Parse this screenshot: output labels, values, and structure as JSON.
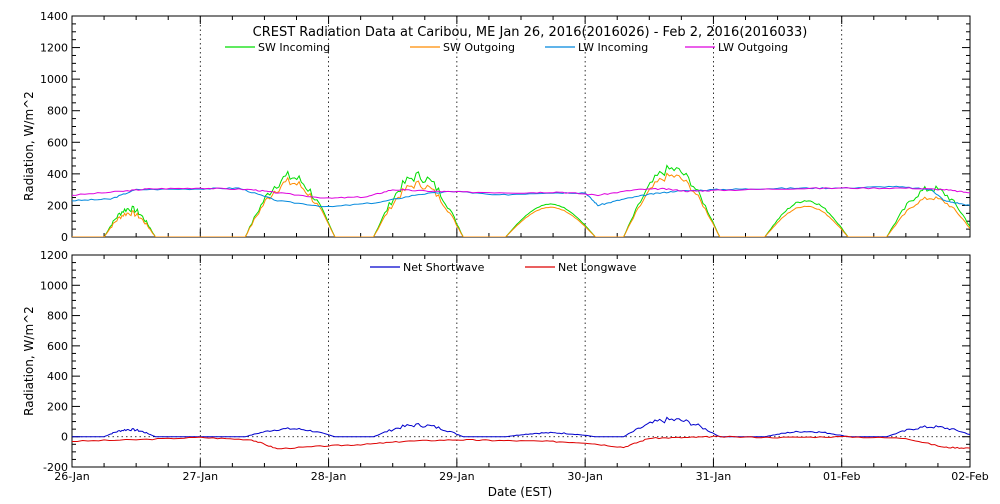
{
  "chart_data": [
    {
      "type": "line",
      "title": "CREST Radiation Data at Caribou, ME   Jan 26, 2016(2016026) - Feb  2, 2016(2016033)",
      "ylabel": "Radiation, W/m^2",
      "xlabel": "",
      "ylim": [
        0,
        1400
      ],
      "yticks": [
        "0",
        "200",
        "400",
        "600",
        "800",
        "1000",
        "1200",
        "1400"
      ],
      "grid": true,
      "legend_position": "top",
      "x_unit": "days since 26-Jan 00:00 EST",
      "series": [
        {
          "name": "SW Incoming",
          "color": "#00dd00",
          "days": [
            [
              0.25,
              0.4,
              200,
              110
            ],
            [
              1.35,
              0.7,
              420,
              240
            ],
            [
              2.35,
              0.7,
              420,
              260
            ],
            [
              3.38,
              0.7,
              210,
              200
            ],
            [
              4.3,
              0.75,
              460,
              320
            ],
            [
              5.4,
              0.65,
              240,
              200
            ],
            [
              6.35,
              0.7,
              330,
              220
            ]
          ]
        },
        {
          "name": "SW Outgoing",
          "color": "#ff8c00",
          "days": [
            [
              0.25,
              0.4,
              170,
              90
            ],
            [
              1.35,
              0.7,
              380,
              220
            ],
            [
              2.35,
              0.7,
              360,
              240
            ],
            [
              3.38,
              0.7,
              190,
              180
            ],
            [
              4.3,
              0.75,
              410,
              300
            ],
            [
              5.4,
              0.65,
              200,
              180
            ],
            [
              6.35,
              0.7,
              260,
              200
            ]
          ]
        },
        {
          "name": "LW Incoming",
          "color": "#0088dd",
          "points": [
            [
              0,
              230
            ],
            [
              0.3,
              240
            ],
            [
              0.5,
              300
            ],
            [
              1,
              305
            ],
            [
              1.3,
              310
            ],
            [
              1.6,
              230
            ],
            [
              2,
              190
            ],
            [
              2.4,
              220
            ],
            [
              2.7,
              270
            ],
            [
              3,
              290
            ],
            [
              3.3,
              265
            ],
            [
              3.7,
              280
            ],
            [
              4,
              280
            ],
            [
              4.1,
              200
            ],
            [
              4.3,
              240
            ],
            [
              4.5,
              270
            ],
            [
              4.7,
              290
            ],
            [
              5,
              300
            ],
            [
              5.3,
              305
            ],
            [
              5.7,
              310
            ],
            [
              6,
              310
            ],
            [
              6.4,
              320
            ],
            [
              6.7,
              300
            ],
            [
              6.8,
              230
            ],
            [
              7,
              200
            ]
          ]
        },
        {
          "name": "LW Outgoing",
          "color": "#dd00dd",
          "points": [
            [
              0,
              265
            ],
            [
              0.4,
              290
            ],
            [
              0.6,
              305
            ],
            [
              1,
              310
            ],
            [
              1.4,
              300
            ],
            [
              1.6,
              280
            ],
            [
              2,
              245
            ],
            [
              2.3,
              255
            ],
            [
              2.5,
              300
            ],
            [
              2.8,
              290
            ],
            [
              3,
              285
            ],
            [
              3.5,
              280
            ],
            [
              3.8,
              285
            ],
            [
              4.1,
              265
            ],
            [
              4.4,
              300
            ],
            [
              4.6,
              305
            ],
            [
              4.8,
              290
            ],
            [
              5,
              295
            ],
            [
              5.5,
              305
            ],
            [
              6,
              310
            ],
            [
              6.5,
              310
            ],
            [
              6.8,
              300
            ],
            [
              7,
              280
            ]
          ]
        }
      ],
      "legend": [
        "SW Incoming",
        "SW Outgoing",
        "LW Incoming",
        "LW Outgoing"
      ]
    },
    {
      "type": "line",
      "title": "",
      "ylabel": "Radiation, W/m^2",
      "xlabel": "Date (EST)",
      "ylim": [
        -200,
        1200
      ],
      "yticks": [
        "-200",
        "0",
        "200",
        "400",
        "600",
        "800",
        "1000",
        "1200"
      ],
      "xticks": [
        "26-Jan",
        "27-Jan",
        "28-Jan",
        "29-Jan",
        "30-Jan",
        "31-Jan",
        "01-Feb",
        "02-Feb"
      ],
      "grid": true,
      "legend_position": "top",
      "series": [
        {
          "name": "Net Shortwave",
          "color": "#0000cc",
          "days": [
            [
              0.25,
              0.4,
              55,
              20
            ],
            [
              1.35,
              0.7,
              60,
              25
            ],
            [
              2.35,
              0.7,
              90,
              30
            ],
            [
              3.38,
              0.7,
              30,
              10
            ],
            [
              4.3,
              0.75,
              130,
              45
            ],
            [
              5.4,
              0.65,
              40,
              15
            ],
            [
              6.35,
              0.7,
              75,
              30
            ]
          ]
        },
        {
          "name": "Net Longwave",
          "color": "#dd0000",
          "points": [
            [
              0,
              -30
            ],
            [
              0.5,
              -20
            ],
            [
              1,
              -5
            ],
            [
              1.4,
              -20
            ],
            [
              1.6,
              -80
            ],
            [
              2,
              -60
            ],
            [
              2.3,
              -50
            ],
            [
              2.6,
              -30
            ],
            [
              3,
              -20
            ],
            [
              3.3,
              -25
            ],
            [
              3.7,
              -30
            ],
            [
              4,
              -40
            ],
            [
              4.3,
              -70
            ],
            [
              4.5,
              -10
            ],
            [
              4.8,
              -5
            ],
            [
              5,
              0
            ],
            [
              5.5,
              -5
            ],
            [
              6,
              0
            ],
            [
              6.5,
              -10
            ],
            [
              6.8,
              -70
            ],
            [
              7,
              -75
            ]
          ]
        }
      ],
      "legend": [
        "Net Shortwave",
        "Net Longwave"
      ]
    }
  ]
}
